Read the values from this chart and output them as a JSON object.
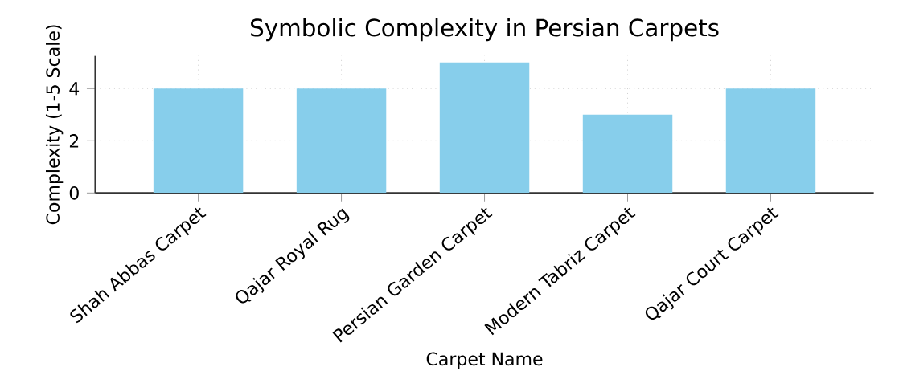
{
  "chart_data": {
    "type": "bar",
    "title": "Symbolic Complexity in Persian Carpets",
    "xlabel": "Carpet Name",
    "ylabel": "Complexity (1-5 Scale)",
    "categories": [
      "Shah Abbas Carpet",
      "Qajar Royal Rug",
      "Persian Garden Carpet",
      "Modern Tabriz Carpet",
      "Qajar Court Carpet"
    ],
    "values": [
      4,
      4,
      5,
      3,
      4
    ],
    "color": "#87ceeb",
    "ylim": [
      0,
      5.25
    ],
    "yticks": [
      0,
      2,
      4
    ],
    "grid": true
  }
}
